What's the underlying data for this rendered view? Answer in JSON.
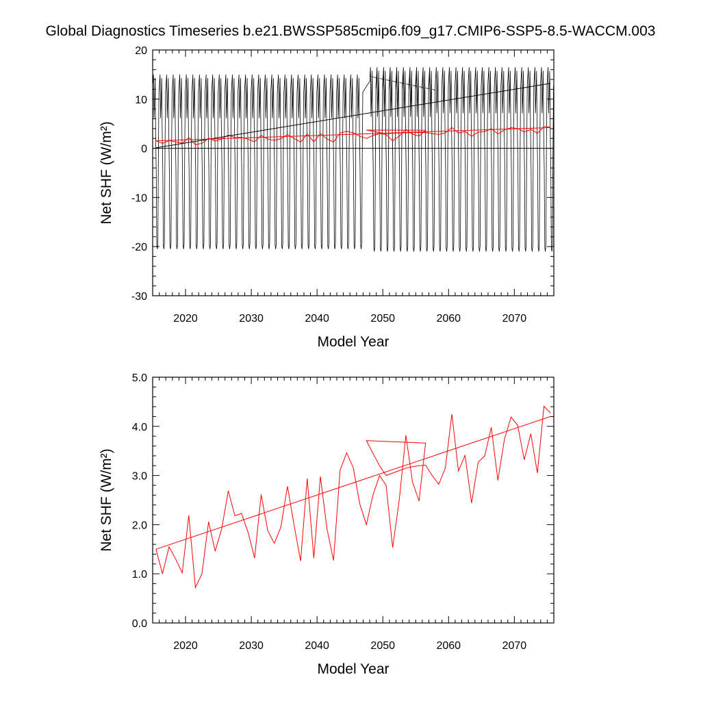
{
  "title": "Global Diagnostics Timeseries b.e21.BWSSP585cmip6.f09_g17.CMIP6-SSP5-8.5-WACCM.003",
  "colors": {
    "monthly": "#000000",
    "annual": "#ff0000",
    "axis": "#000000"
  },
  "chart_data": [
    {
      "type": "line",
      "xlabel": "Model Year",
      "ylabel": "Net SHF (W/m²)",
      "xlim": [
        2015,
        2076
      ],
      "ylim": [
        -30,
        20
      ],
      "x_ticks": [
        2020,
        2030,
        2040,
        2050,
        2060,
        2070
      ],
      "y_ticks": [
        -30,
        -20,
        -10,
        0,
        10,
        20
      ],
      "y_tick_labels": [
        "-30",
        "-20",
        "-10",
        "0",
        "10",
        "20"
      ],
      "reference_line": 0,
      "series": [
        {
          "kind": "monthly",
          "color": "#000000",
          "segments": [
            {
              "start_year": 2015,
              "years": 32,
              "summer_max": 15,
              "winter_min": -20.5
            },
            {
              "start_year": 2048,
              "years": 10,
              "summer_max": 15.5,
              "winter_min": -21
            },
            {
              "start_year": 2048,
              "years": 28,
              "summer_max": 16.5,
              "winter_min": -21
            }
          ]
        },
        {
          "kind": "annual",
          "color": "#ff0000",
          "x": [
            2015.5,
            2016.5,
            2017.5,
            2018.5,
            2019.5,
            2020.5,
            2021.5,
            2022.5,
            2023.5,
            2024.5,
            2025.5,
            2026.5,
            2027.5,
            2028.5,
            2029.5,
            2030.5,
            2031.5,
            2032.5,
            2033.5,
            2034.5,
            2035.5,
            2036.5,
            2037.5,
            2038.5,
            2039.5,
            2040.5,
            2041.5,
            2042.5,
            2043.5,
            2044.5,
            2045.5,
            2046.5,
            2047.5,
            2048.5,
            2049.5,
            2050.5,
            2051.5,
            2052.5,
            2053.5,
            2054.5,
            2055.5,
            2056.5,
            2056.5,
            2047.5,
            2048.5,
            2049.5,
            2050.5,
            2051.5,
            2052.5,
            2053.5,
            2054.5,
            2055.5,
            2056.5,
            2057.5,
            2058.5,
            2059.5,
            2060.5,
            2061.5,
            2062.5,
            2063.5,
            2064.5,
            2065.5,
            2066.5,
            2067.5,
            2068.5,
            2069.5,
            2070.5,
            2071.5,
            2072.5,
            2073.5,
            2074.5,
            2075.5
          ],
          "values": [
            1.5,
            1.0,
            1.55,
            1.3,
            1.02,
            2.19,
            0.72,
            1.0,
            2.06,
            1.46,
            1.92,
            2.69,
            2.18,
            2.23,
            1.85,
            1.32,
            2.61,
            1.88,
            1.62,
            1.95,
            2.78,
            2.0,
            1.26,
            2.94,
            1.32,
            2.98,
            1.92,
            1.27,
            3.11,
            3.46,
            3.16,
            2.42,
            2.0,
            2.6,
            3.0,
            2.8,
            1.53,
            2.5,
            3.82,
            2.87,
            2.48,
            3.66,
            3.66,
            3.71,
            3.45,
            3.2,
            3.0,
            3.05,
            3.1,
            3.15,
            3.18,
            3.2,
            3.21,
            3.0,
            2.82,
            3.15,
            4.25,
            3.09,
            3.41,
            2.44,
            3.27,
            3.4,
            3.98,
            2.9,
            3.75,
            4.19,
            4.02,
            3.32,
            3.85,
            3.05,
            4.41,
            4.27
          ]
        },
        {
          "kind": "trend-monthly",
          "color": "#000000",
          "x": [
            2015.5,
            2075.5
          ],
          "values": [
            0.1,
            13.2
          ]
        },
        {
          "kind": "trend-annual",
          "color": "#ff0000",
          "x": [
            2015.5,
            2075.5
          ],
          "values": [
            1.5,
            4.2
          ]
        }
      ]
    },
    {
      "type": "line",
      "xlabel": "Model Year",
      "ylabel": "Net SHF (W/m²)",
      "xlim": [
        2015,
        2076
      ],
      "ylim": [
        0,
        5
      ],
      "x_ticks": [
        2020,
        2030,
        2040,
        2050,
        2060,
        2070
      ],
      "y_ticks": [
        0,
        1,
        2,
        3,
        4,
        5
      ],
      "y_tick_labels": [
        "0.0",
        "1.0",
        "2.0",
        "3.0",
        "4.0",
        "5.0"
      ],
      "series": [
        {
          "kind": "annual",
          "color": "#ff0000",
          "ref": "panel0-annual"
        },
        {
          "kind": "trend-annual",
          "color": "#ff0000",
          "x": [
            2015.5,
            2075.5
          ],
          "values": [
            1.5,
            4.2
          ]
        }
      ]
    }
  ]
}
